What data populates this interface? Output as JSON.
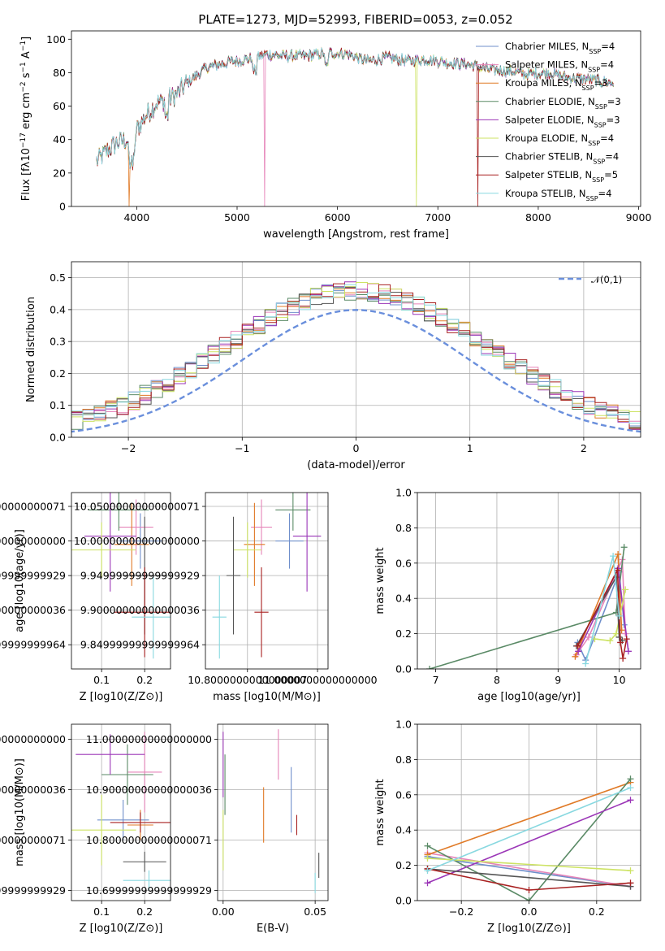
{
  "figure": {
    "title": "PLATE=1273, MJD=52993, FIBERID=0053, z=0.052"
  },
  "model_colors": [
    "#6f8fcb",
    "#e684b9",
    "#e07a27",
    "#5a8a66",
    "#9b36b7",
    "#cde363",
    "#555555",
    "#a82020",
    "#88d8e0"
  ],
  "chart_data": [
    {
      "id": "spectrum",
      "type": "line",
      "title": "PLATE=1273, MJD=52993, FIBERID=0053, z=0.052",
      "xlabel": "wavelength [Angstrom, rest frame]",
      "ylabel": "Flux [f_λ10^-17 erg cm^-2 s^-1 A^-1]",
      "xlim": [
        3350,
        9020
      ],
      "ylim": [
        0,
        105
      ],
      "xticks": [
        4000,
        5000,
        6000,
        7000,
        8000,
        9000
      ],
      "yticks": [
        0,
        20,
        40,
        60,
        80,
        100
      ],
      "grid": false,
      "legend_position": "top-right",
      "series": [
        {
          "name": "Chabrier MILES, N_SSP=4"
        },
        {
          "name": "Salpeter MILES, N_SSP=4"
        },
        {
          "name": "Kroupa MILES, N_SSP=3"
        },
        {
          "name": "Chabrier ELODIE, N_SSP=3"
        },
        {
          "name": "Salpeter ELODIE, N_SSP=3"
        },
        {
          "name": "Kroupa ELODIE, N_SSP=4"
        },
        {
          "name": "Chabrier STELIB, N_SSP=4"
        },
        {
          "name": "Salpeter STELIB, N_SSP=5"
        },
        {
          "name": "Kroupa STELIB, N_SSP=4"
        }
      ],
      "continuum_x": [
        3600,
        3700,
        3800,
        3900,
        3950,
        4000,
        4100,
        4200,
        4300,
        4400,
        4500,
        4700,
        4900,
        5100,
        5300,
        5500,
        5700,
        5900,
        6100,
        6300,
        6500,
        6700,
        6900,
        7100,
        7300,
        7500,
        7700,
        7900,
        8100,
        8300,
        8500,
        8700
      ],
      "continuum_y": [
        27,
        33,
        38,
        40,
        33,
        46,
        55,
        62,
        64,
        67,
        74,
        83,
        86,
        88,
        91,
        90,
        90,
        92,
        91,
        87,
        89,
        87,
        88,
        86,
        85,
        82,
        81,
        79,
        80,
        77,
        76,
        74
      ],
      "drops": [
        {
          "x": 3920,
          "y": 0,
          "series": 2
        },
        {
          "x": 5270,
          "y": 0,
          "series": 1
        },
        {
          "x": 6790,
          "y": 0,
          "series": 5
        },
        {
          "x": 7400,
          "y": 0,
          "series": 7
        }
      ]
    },
    {
      "id": "residuals",
      "type": "histogram",
      "xlabel": "(data-model)/error",
      "ylabel": "Normed distribution",
      "xlim": [
        -2.5,
        2.5
      ],
      "ylim": [
        0,
        0.55
      ],
      "xticks": [
        -2,
        -1,
        0,
        1,
        2
      ],
      "yticks": [
        0.0,
        0.1,
        0.2,
        0.3,
        0.4,
        0.5
      ],
      "grid": true,
      "legend_position": "top-right",
      "reference_curve": {
        "name": "𝒩(0,1)",
        "mean": 0,
        "sigma": 1
      },
      "bin_width": 0.1
    },
    {
      "id": "age_vs_Z",
      "type": "scatter",
      "xlabel": "Z [log10(Z/Z⊙)]",
      "ylabel": "age  [log10(age/yr)]",
      "xlim": [
        0.03,
        0.26
      ],
      "ylim": [
        9.815,
        10.07
      ],
      "xticks": [
        0.1,
        0.2
      ],
      "yticks": [
        9.85,
        9.9,
        9.95,
        10.0,
        10.05
      ],
      "grid": true,
      "points": [
        {
          "x": 0.19,
          "xerr": 0.05,
          "y": 10.0,
          "yerr": 0.04
        },
        {
          "x": 0.18,
          "xerr": 0.04,
          "y": 10.02,
          "yerr": 0.04
        },
        {
          "x": 0.17,
          "xerr": 0.04,
          "y": 9.995,
          "yerr": 0.06
        },
        {
          "x": 0.14,
          "xerr": 0.07,
          "y": 10.045,
          "yerr": 0.03
        },
        {
          "x": 0.12,
          "xerr": 0.06,
          "y": 10.007,
          "yerr": 0.08
        },
        {
          "x": 0.1,
          "xerr": 0.08,
          "y": 9.987,
          "yerr": 0.04
        },
        {
          "x": 0.2,
          "xerr": 0.05,
          "y": 9.95,
          "yerr": 0.085
        },
        {
          "x": 0.2,
          "xerr": 0.07,
          "y": 9.897,
          "yerr": 0.065
        },
        {
          "x": 0.22,
          "xerr": 0.05,
          "y": 9.89,
          "yerr": 0.06
        }
      ]
    },
    {
      "id": "age_vs_mass",
      "type": "scatter",
      "xlabel": "mass [log10(M/M⊙)]",
      "ylabel": "",
      "xlim": [
        10.68,
        11.03
      ],
      "ylim": [
        9.815,
        10.07
      ],
      "xticks": [
        10.8,
        11.0
      ],
      "yticks": [
        9.85,
        9.9,
        9.95,
        10.0,
        10.05
      ],
      "grid": true,
      "points": [
        {
          "x": 10.92,
          "xerr": 0.04,
          "y": 10.0,
          "yerr": 0.04
        },
        {
          "x": 10.84,
          "xerr": 0.03,
          "y": 10.02,
          "yerr": 0.04
        },
        {
          "x": 10.82,
          "xerr": 0.03,
          "y": 9.995,
          "yerr": 0.06
        },
        {
          "x": 10.93,
          "xerr": 0.05,
          "y": 10.045,
          "yerr": 0.03
        },
        {
          "x": 10.97,
          "xerr": 0.04,
          "y": 10.007,
          "yerr": 0.08
        },
        {
          "x": 10.8,
          "xerr": 0.04,
          "y": 9.987,
          "yerr": 0.04
        },
        {
          "x": 10.76,
          "xerr": 0.02,
          "y": 9.95,
          "yerr": 0.085
        },
        {
          "x": 10.84,
          "xerr": 0.02,
          "y": 9.897,
          "yerr": 0.065
        },
        {
          "x": 10.72,
          "xerr": 0.02,
          "y": 9.89,
          "yerr": 0.06
        }
      ]
    },
    {
      "id": "weight_vs_age",
      "type": "line",
      "xlabel": "age  [log10(age/yr)]",
      "ylabel": "mass weight",
      "xlim": [
        6.7,
        10.35
      ],
      "ylim": [
        0,
        1
      ],
      "xticks": [
        7,
        8,
        9,
        10
      ],
      "yticks": [
        0.0,
        0.2,
        0.4,
        0.6,
        0.8,
        1.0
      ],
      "grid": true,
      "series": [
        {
          "x": [
            9.32,
            9.45,
            10.0,
            10.08
          ],
          "y": [
            0.15,
            0.05,
            0.55,
            0.25
          ]
        },
        {
          "x": [
            9.3,
            9.5,
            10.05,
            10.1
          ],
          "y": [
            0.08,
            0.18,
            0.62,
            0.2
          ]
        },
        {
          "x": [
            9.28,
            9.98,
            10.04
          ],
          "y": [
            0.07,
            0.65,
            0.22
          ]
        },
        {
          "x": [
            6.9,
            9.95,
            10.08
          ],
          "y": [
            0.0,
            0.32,
            0.69
          ]
        },
        {
          "x": [
            9.33,
            9.98,
            10.15
          ],
          "y": [
            0.1,
            0.57,
            0.1
          ]
        },
        {
          "x": [
            9.6,
            9.85,
            9.95,
            10.1
          ],
          "y": [
            0.17,
            0.16,
            0.2,
            0.45
          ]
        },
        {
          "x": [
            9.3,
            9.95,
            10.0,
            10.05
          ],
          "y": [
            0.13,
            0.52,
            0.18,
            0.16
          ]
        },
        {
          "x": [
            9.32,
            9.97,
            10.02,
            10.06,
            10.12
          ],
          "y": [
            0.13,
            0.56,
            0.15,
            0.06,
            0.17
          ]
        },
        {
          "x": [
            9.45,
            9.9,
            10.0
          ],
          "y": [
            0.03,
            0.64,
            0.3
          ]
        }
      ]
    },
    {
      "id": "mass_vs_Z",
      "type": "scatter",
      "xlabel": "Z [log10(Z/Z⊙)]",
      "ylabel": "mass [log10(M/M⊙)]",
      "xlim": [
        0.03,
        0.26
      ],
      "ylim": [
        10.68,
        11.03
      ],
      "xticks": [
        0.1,
        0.2
      ],
      "yticks": [
        10.7,
        10.8,
        10.9,
        11.0
      ],
      "grid": true,
      "points": [
        {
          "x": 0.15,
          "xerr": 0.06,
          "y": 10.84,
          "yerr": 0.04
        },
        {
          "x": 0.2,
          "xerr": 0.04,
          "y": 10.935,
          "yerr": 0.08
        },
        {
          "x": 0.19,
          "xerr": 0.03,
          "y": 10.83,
          "yerr": 0.03
        },
        {
          "x": 0.16,
          "xerr": 0.06,
          "y": 10.93,
          "yerr": 0.06
        },
        {
          "x": 0.12,
          "xerr": 0.08,
          "y": 10.97,
          "yerr": 0.04
        },
        {
          "x": 0.1,
          "xerr": 0.08,
          "y": 10.82,
          "yerr": 0.07
        },
        {
          "x": 0.2,
          "xerr": 0.05,
          "y": 10.757,
          "yerr": 0.02
        },
        {
          "x": 0.19,
          "xerr": 0.07,
          "y": 10.835,
          "yerr": 0.02
        },
        {
          "x": 0.21,
          "xerr": 0.06,
          "y": 10.72,
          "yerr": 0.02
        }
      ]
    },
    {
      "id": "mass_vs_EBV",
      "type": "scatter",
      "xlabel": "E(B-V)",
      "ylabel": "",
      "xlim": [
        -0.003,
        0.057
      ],
      "ylim": [
        10.68,
        11.03
      ],
      "xticks": [
        0.0,
        0.05
      ],
      "yticks": [
        10.7,
        10.8,
        10.9,
        11.0
      ],
      "grid": true,
      "points": [
        {
          "x": 0.037,
          "y": 10.88,
          "yerr": 0.065
        },
        {
          "x": 0.03,
          "y": 10.97,
          "yerr": 0.05
        },
        {
          "x": 0.022,
          "y": 10.85,
          "yerr": 0.055
        },
        {
          "x": 0.001,
          "y": 10.91,
          "yerr": 0.06
        },
        {
          "x": 0.0,
          "y": 10.95,
          "yerr": 0.065
        },
        {
          "x": 0.0,
          "y": 10.8,
          "yerr": 0.06
        },
        {
          "x": 0.052,
          "y": 10.75,
          "yerr": 0.025
        },
        {
          "x": 0.04,
          "y": 10.83,
          "yerr": 0.02
        },
        {
          "x": 0.05,
          "y": 10.715,
          "yerr": 0.02
        }
      ]
    },
    {
      "id": "weight_vs_Z",
      "type": "line",
      "xlabel": "Z [log10(Z/Z⊙)]",
      "ylabel": "mass weight",
      "xlim": [
        -0.33,
        0.33
      ],
      "ylim": [
        0,
        1
      ],
      "xticks": [
        -0.2,
        0.0,
        0.2
      ],
      "yticks": [
        0.0,
        0.2,
        0.4,
        0.6,
        0.8,
        1.0
      ],
      "grid": true,
      "series": [
        {
          "x": [
            -0.3,
            0.3
          ],
          "y": [
            0.25,
            0.08
          ]
        },
        {
          "x": [
            -0.3,
            0.3
          ],
          "y": [
            0.27,
            0.08
          ]
        },
        {
          "x": [
            -0.3,
            0.3
          ],
          "y": [
            0.26,
            0.67
          ]
        },
        {
          "x": [
            -0.3,
            0.0,
            0.3
          ],
          "y": [
            0.31,
            0.0,
            0.69
          ]
        },
        {
          "x": [
            -0.3,
            0.3
          ],
          "y": [
            0.1,
            0.57
          ]
        },
        {
          "x": [
            -0.3,
            0.3
          ],
          "y": [
            0.24,
            0.17
          ]
        },
        {
          "x": [
            -0.3,
            0.3
          ],
          "y": [
            0.18,
            0.08
          ]
        },
        {
          "x": [
            -0.3,
            0.0,
            0.3
          ],
          "y": [
            0.18,
            0.06,
            0.1
          ]
        },
        {
          "x": [
            -0.3,
            0.3
          ],
          "y": [
            0.17,
            0.64
          ]
        }
      ]
    }
  ]
}
